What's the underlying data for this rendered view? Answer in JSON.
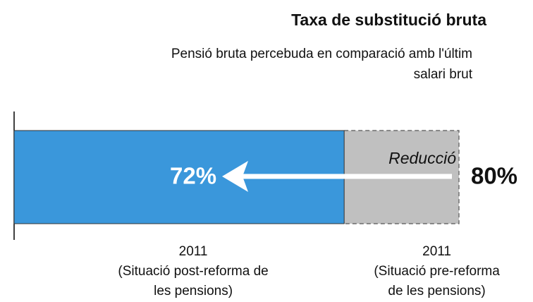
{
  "chart_data": {
    "type": "bar",
    "orientation": "horizontal",
    "title": "Taxa de substitució bruta",
    "subtitle": "Pensió bruta percebuda en comparació amb l'últim\nsalari brut",
    "categories": [
      "2011\n(Situació post-reforma de\nles pensions)",
      "2011\n(Situació pre-reforma\nde les pensions)"
    ],
    "values": [
      72,
      80
    ],
    "value_labels": [
      "72%",
      "80%"
    ],
    "colors": [
      "#3a97db",
      "#c0c0c0"
    ],
    "annotation": "Reducció",
    "xlim": [
      49,
      80
    ]
  }
}
